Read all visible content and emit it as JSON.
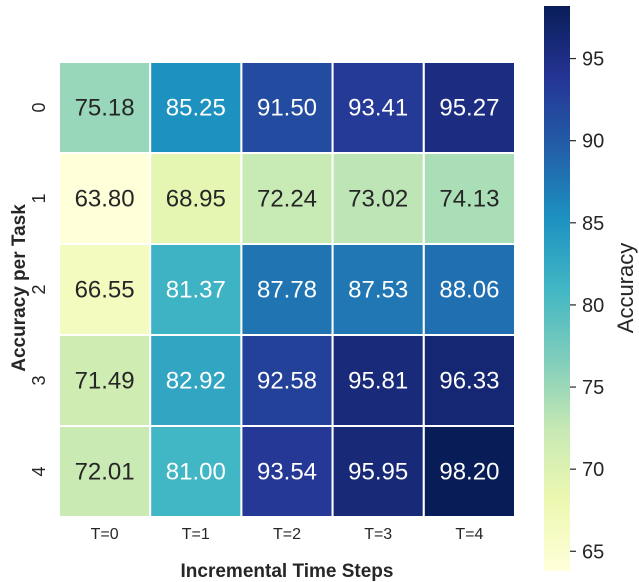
{
  "chart_data": {
    "type": "heatmap",
    "title": "",
    "xlabel": "Incremental Time Steps",
    "ylabel": "Accuracy per Task",
    "x_categories": [
      "T=0",
      "T=1",
      "T=2",
      "T=3",
      "T=4"
    ],
    "y_categories": [
      "0",
      "1",
      "2",
      "3",
      "4"
    ],
    "values": [
      [
        75.18,
        85.25,
        91.5,
        93.41,
        95.27
      ],
      [
        63.8,
        68.95,
        72.24,
        73.02,
        74.13
      ],
      [
        66.55,
        81.37,
        87.78,
        87.53,
        88.06
      ],
      [
        71.49,
        82.92,
        92.58,
        95.81,
        96.33
      ],
      [
        72.01,
        81.0,
        93.54,
        95.95,
        98.2
      ]
    ],
    "colorbar": {
      "label": "Accuracy",
      "range": [
        63.8,
        98.2
      ],
      "ticks": [
        65,
        70,
        75,
        80,
        85,
        90,
        95
      ],
      "colormap": "YlGnBu",
      "stops": [
        "#ffffd9",
        "#edf8b1",
        "#c7e9b4",
        "#7fcdbb",
        "#41b6c4",
        "#1d91c0",
        "#225ea8",
        "#253494",
        "#081d58"
      ]
    },
    "grid": false,
    "annotations": "cell values shown with two decimals"
  }
}
